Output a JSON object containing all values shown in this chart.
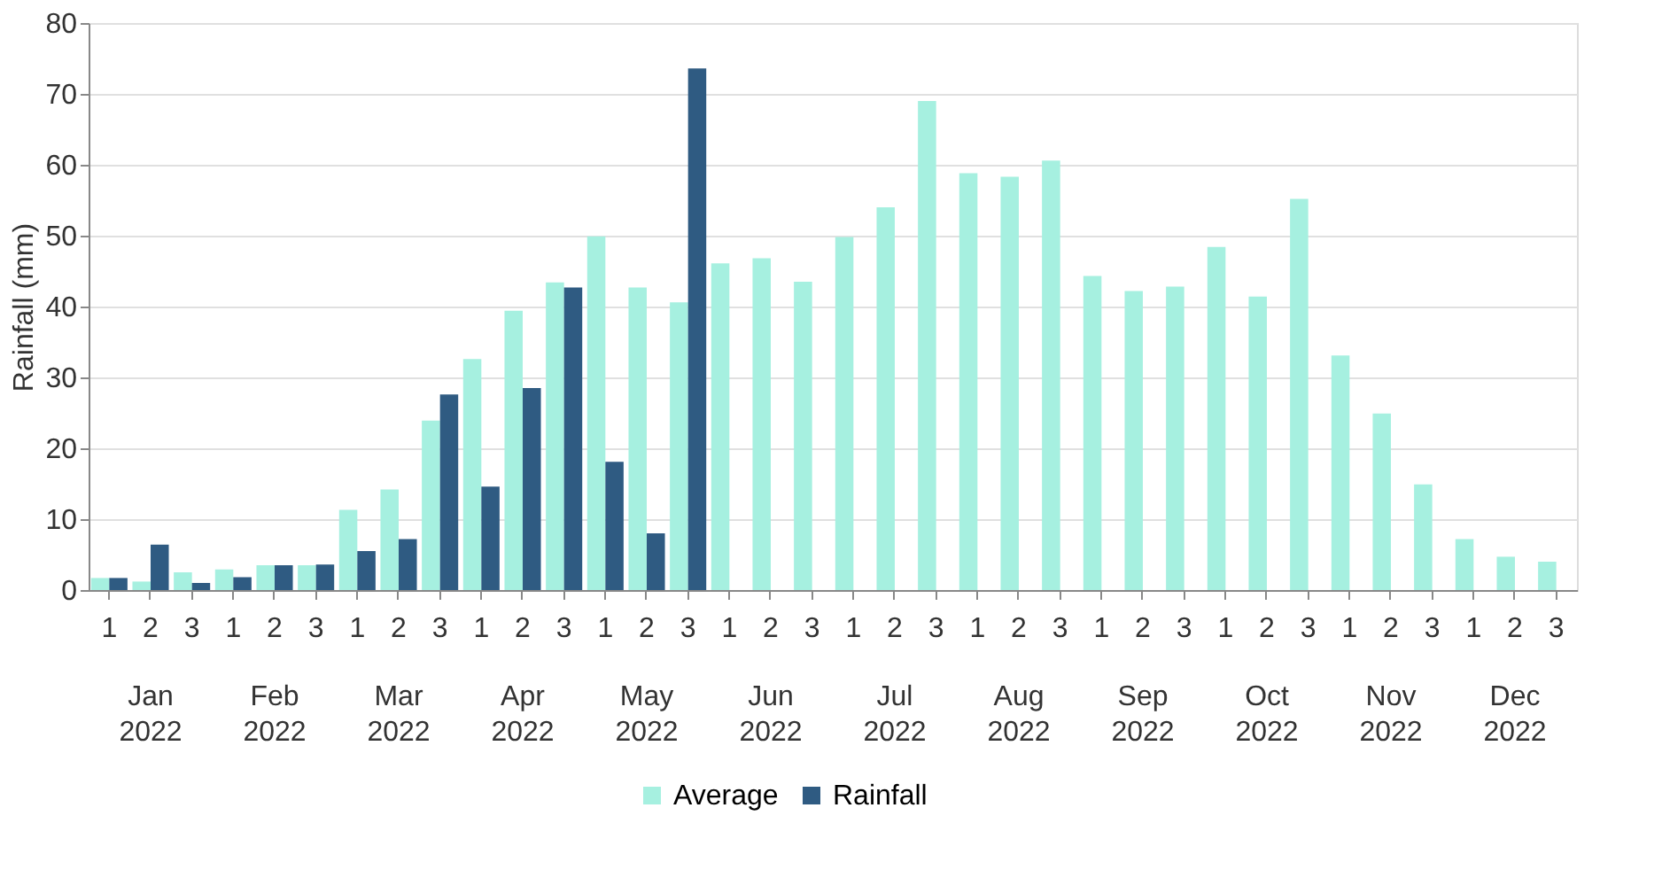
{
  "chart_data": {
    "type": "bar",
    "ylabel": "Rainfall (mm)",
    "categories": [
      "1",
      "2",
      "3",
      "1",
      "2",
      "3",
      "1",
      "2",
      "3",
      "1",
      "2",
      "3",
      "1",
      "2",
      "3",
      "1",
      "2",
      "3",
      "1",
      "2",
      "3",
      "1",
      "2",
      "3",
      "1",
      "2",
      "3",
      "1",
      "2",
      "3",
      "1",
      "2",
      "3",
      "1",
      "2",
      "3"
    ],
    "annotations": [
      "Jan 2022",
      "Feb 2022",
      "Mar 2022",
      "Apr 2022",
      "May 2022",
      "Jun 2022",
      "Jul 2022",
      "Aug 2022",
      "Sep 2022",
      "Oct 2022",
      "Nov 2022",
      "Dec 2022"
    ],
    "series": [
      {
        "name": "Average",
        "color": "#a6f0e0",
        "values": [
          1.7,
          1.2,
          2.5,
          2.9,
          3.5,
          3.5,
          11.3,
          14.2,
          23.9,
          32.6,
          39.4,
          43.4,
          49.9,
          42.7,
          40.6,
          46.1,
          46.8,
          43.5,
          49.8,
          54.0,
          69.0,
          58.8,
          58.3,
          60.6,
          44.3,
          42.2,
          42.8,
          48.4,
          41.4,
          55.2,
          33.1,
          24.9,
          14.9,
          7.2,
          4.7,
          4.0
        ]
      },
      {
        "name": "Rainfall",
        "color": "#2f5b82",
        "values": [
          1.7,
          6.4,
          1.0,
          1.8,
          3.5,
          3.6,
          5.5,
          7.2,
          27.6,
          14.6,
          28.5,
          42.7,
          18.1,
          8.0,
          73.6,
          null,
          null,
          null,
          null,
          null,
          null,
          null,
          null,
          null,
          null,
          null,
          null,
          null,
          null,
          null,
          null,
          null,
          null,
          null,
          null,
          null
        ]
      }
    ],
    "ylim": [
      0,
      80
    ],
    "yticks": [
      0,
      10,
      20,
      30,
      40,
      50,
      60,
      70,
      80
    ],
    "grid": "y",
    "legend": "bottom"
  }
}
